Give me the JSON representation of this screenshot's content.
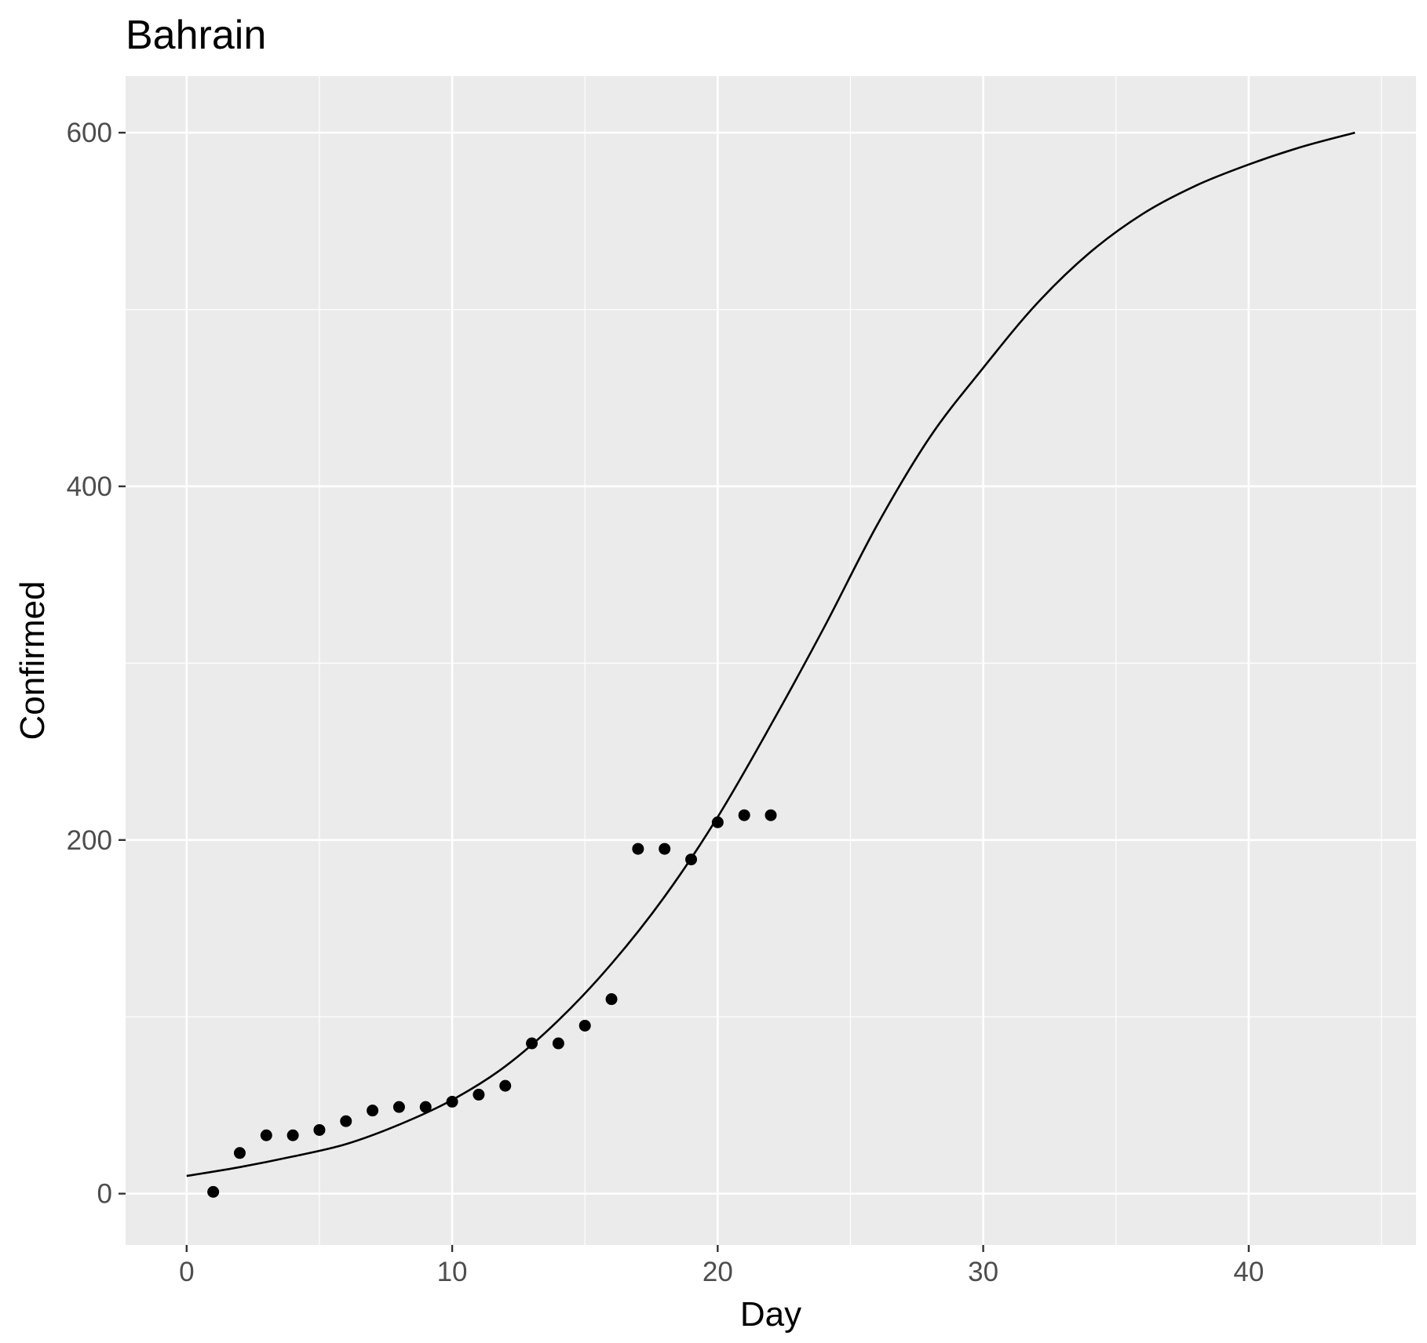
{
  "chart_data": {
    "type": "scatter",
    "title": "Bahrain",
    "xlabel": "Day",
    "ylabel": "Confirmed",
    "xlim": [
      -2.3,
      46.3
    ],
    "ylim": [
      -29,
      632
    ],
    "x_ticks": [
      0,
      10,
      20,
      30,
      40
    ],
    "y_ticks": [
      0,
      200,
      400,
      600
    ],
    "x_minor_ticks": [
      5,
      15,
      25,
      35,
      45
    ],
    "y_minor_ticks": [
      100,
      300,
      500
    ],
    "grid": true,
    "legend": "none",
    "colors": {
      "panel": "#ebebeb",
      "grid": "#ffffff",
      "points": "#000000",
      "line": "#000000",
      "tick_text": "#4d4d4d",
      "tick_mark": "#333333"
    },
    "series": [
      {
        "kind": "points",
        "x": [
          1,
          2,
          3,
          4,
          5,
          6,
          7,
          8,
          9,
          10,
          11,
          12,
          13,
          14,
          15,
          16,
          17,
          18,
          19,
          20,
          21,
          22
        ],
        "y": [
          1,
          23,
          33,
          33,
          36,
          41,
          47,
          49,
          49,
          52,
          56,
          61,
          85,
          85,
          95,
          110,
          195,
          195,
          189,
          210,
          214,
          214
        ]
      },
      {
        "kind": "line",
        "x": [
          0,
          2,
          4,
          6,
          8,
          10,
          12,
          14,
          16,
          18,
          20,
          22,
          24,
          26,
          28,
          30,
          32,
          34,
          36,
          38,
          40,
          42,
          44
        ],
        "y": [
          10,
          15,
          21,
          28,
          39,
          53,
          72,
          98,
          130,
          168,
          213,
          265,
          320,
          378,
          428,
          467,
          503,
          532,
          554,
          570,
          582,
          592,
          600
        ]
      }
    ]
  }
}
